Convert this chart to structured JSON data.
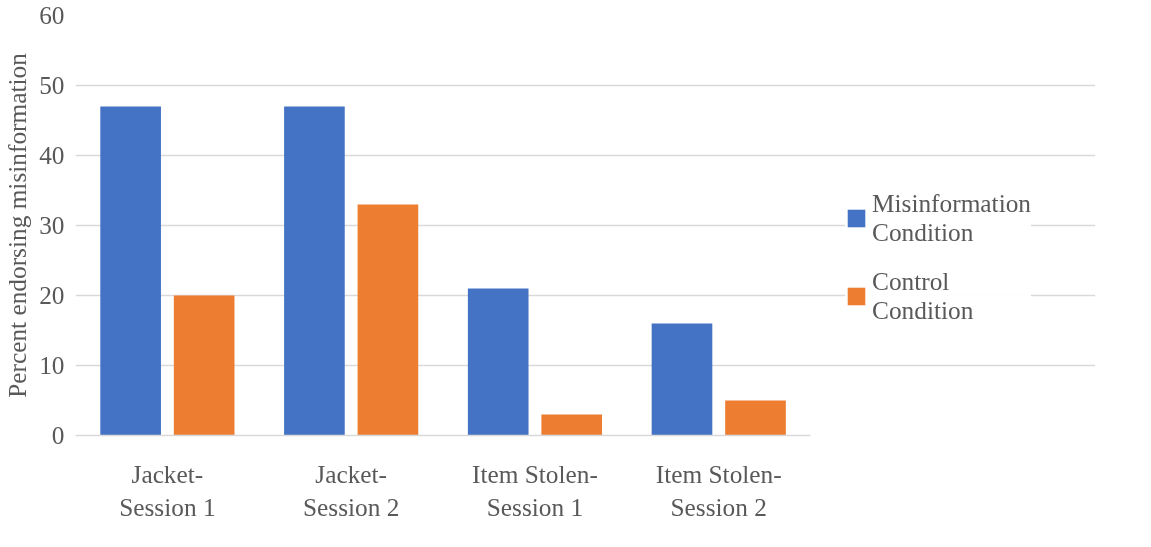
{
  "chart_data": {
    "type": "bar",
    "ylabel": "Percent endorsing misinformation",
    "categories": [
      "Jacket-\nSession 1",
      "Jacket-\nSession 2",
      "Item Stolen-\nSession 1",
      "Item Stolen-\nSession 2"
    ],
    "series": [
      {
        "name": "Misinformation Condition",
        "color": "#4472c4",
        "values": [
          47,
          47,
          21,
          16
        ]
      },
      {
        "name": "Control Condition",
        "color": "#ed7d31",
        "values": [
          20,
          33,
          3,
          5
        ]
      }
    ],
    "ylim": [
      0,
      60
    ],
    "yticks": [
      0,
      10,
      20,
      30,
      40,
      50,
      60
    ],
    "grid": "y",
    "legend": "right"
  }
}
